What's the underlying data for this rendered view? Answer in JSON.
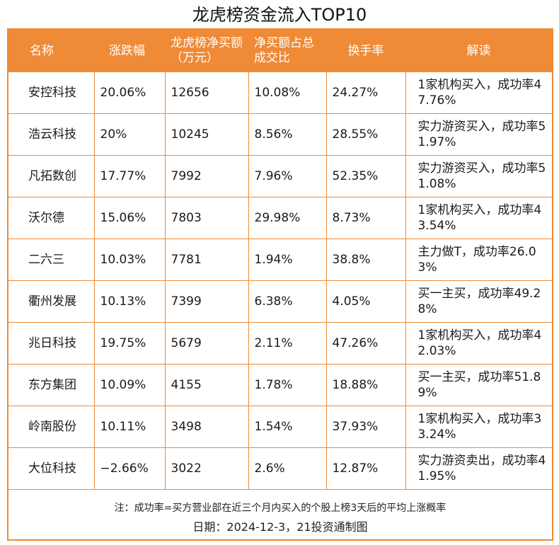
{
  "chart_data": {
    "type": "table",
    "title": "龙虎榜资金流入TOP10",
    "columns": [
      "名称",
      "涨跌幅",
      "龙虎榜净买额（万元）",
      "净买额占总成交比",
      "换手率",
      "解读"
    ],
    "rows": [
      [
        "安控科技",
        "20.06%",
        "12656",
        "10.08%",
        "24.27%",
        "1家机构买入，成功率47.76%"
      ],
      [
        "浩云科技",
        "20%",
        "10245",
        "8.56%",
        "28.55%",
        "实力游资买入，成功率51.97%"
      ],
      [
        "凡拓数创",
        "17.77%",
        "7992",
        "7.96%",
        "52.35%",
        "实力游资买入，成功率51.08%"
      ],
      [
        "沃尔德",
        "15.06%",
        "7803",
        "29.98%",
        "8.73%",
        "1家机构买入，成功率43.54%"
      ],
      [
        "二六三",
        "10.03%",
        "7781",
        "1.94%",
        "38.8%",
        "主力做T，成功率26.03%"
      ],
      [
        "衢州发展",
        "10.13%",
        "7399",
        "6.38%",
        "4.05%",
        "买一主买，成功率49.28%"
      ],
      [
        "兆日科技",
        "19.75%",
        "5679",
        "2.11%",
        "47.26%",
        "1家机构买入，成功率42.03%"
      ],
      [
        "东方集团",
        "10.09%",
        "4155",
        "1.78%",
        "18.88%",
        "买一主买，成功率51.89%"
      ],
      [
        "岭南股份",
        "10.11%",
        "3498",
        "1.54%",
        "37.93%",
        "1家机构买入，成功率33.24%"
      ],
      [
        "大位科技",
        "−2.66%",
        "3022",
        "2.6%",
        "12.87%",
        "实力游资卖出，成功率41.95%"
      ]
    ],
    "note": "注：成功率=买方营业部在近三个月内买入的个股上榜3天后的平均上涨概率",
    "date_line": "日期：2024-12-3，21投资通制图",
    "colors": {
      "accent": "#ef8a36",
      "header_text": "#ffffff"
    }
  }
}
